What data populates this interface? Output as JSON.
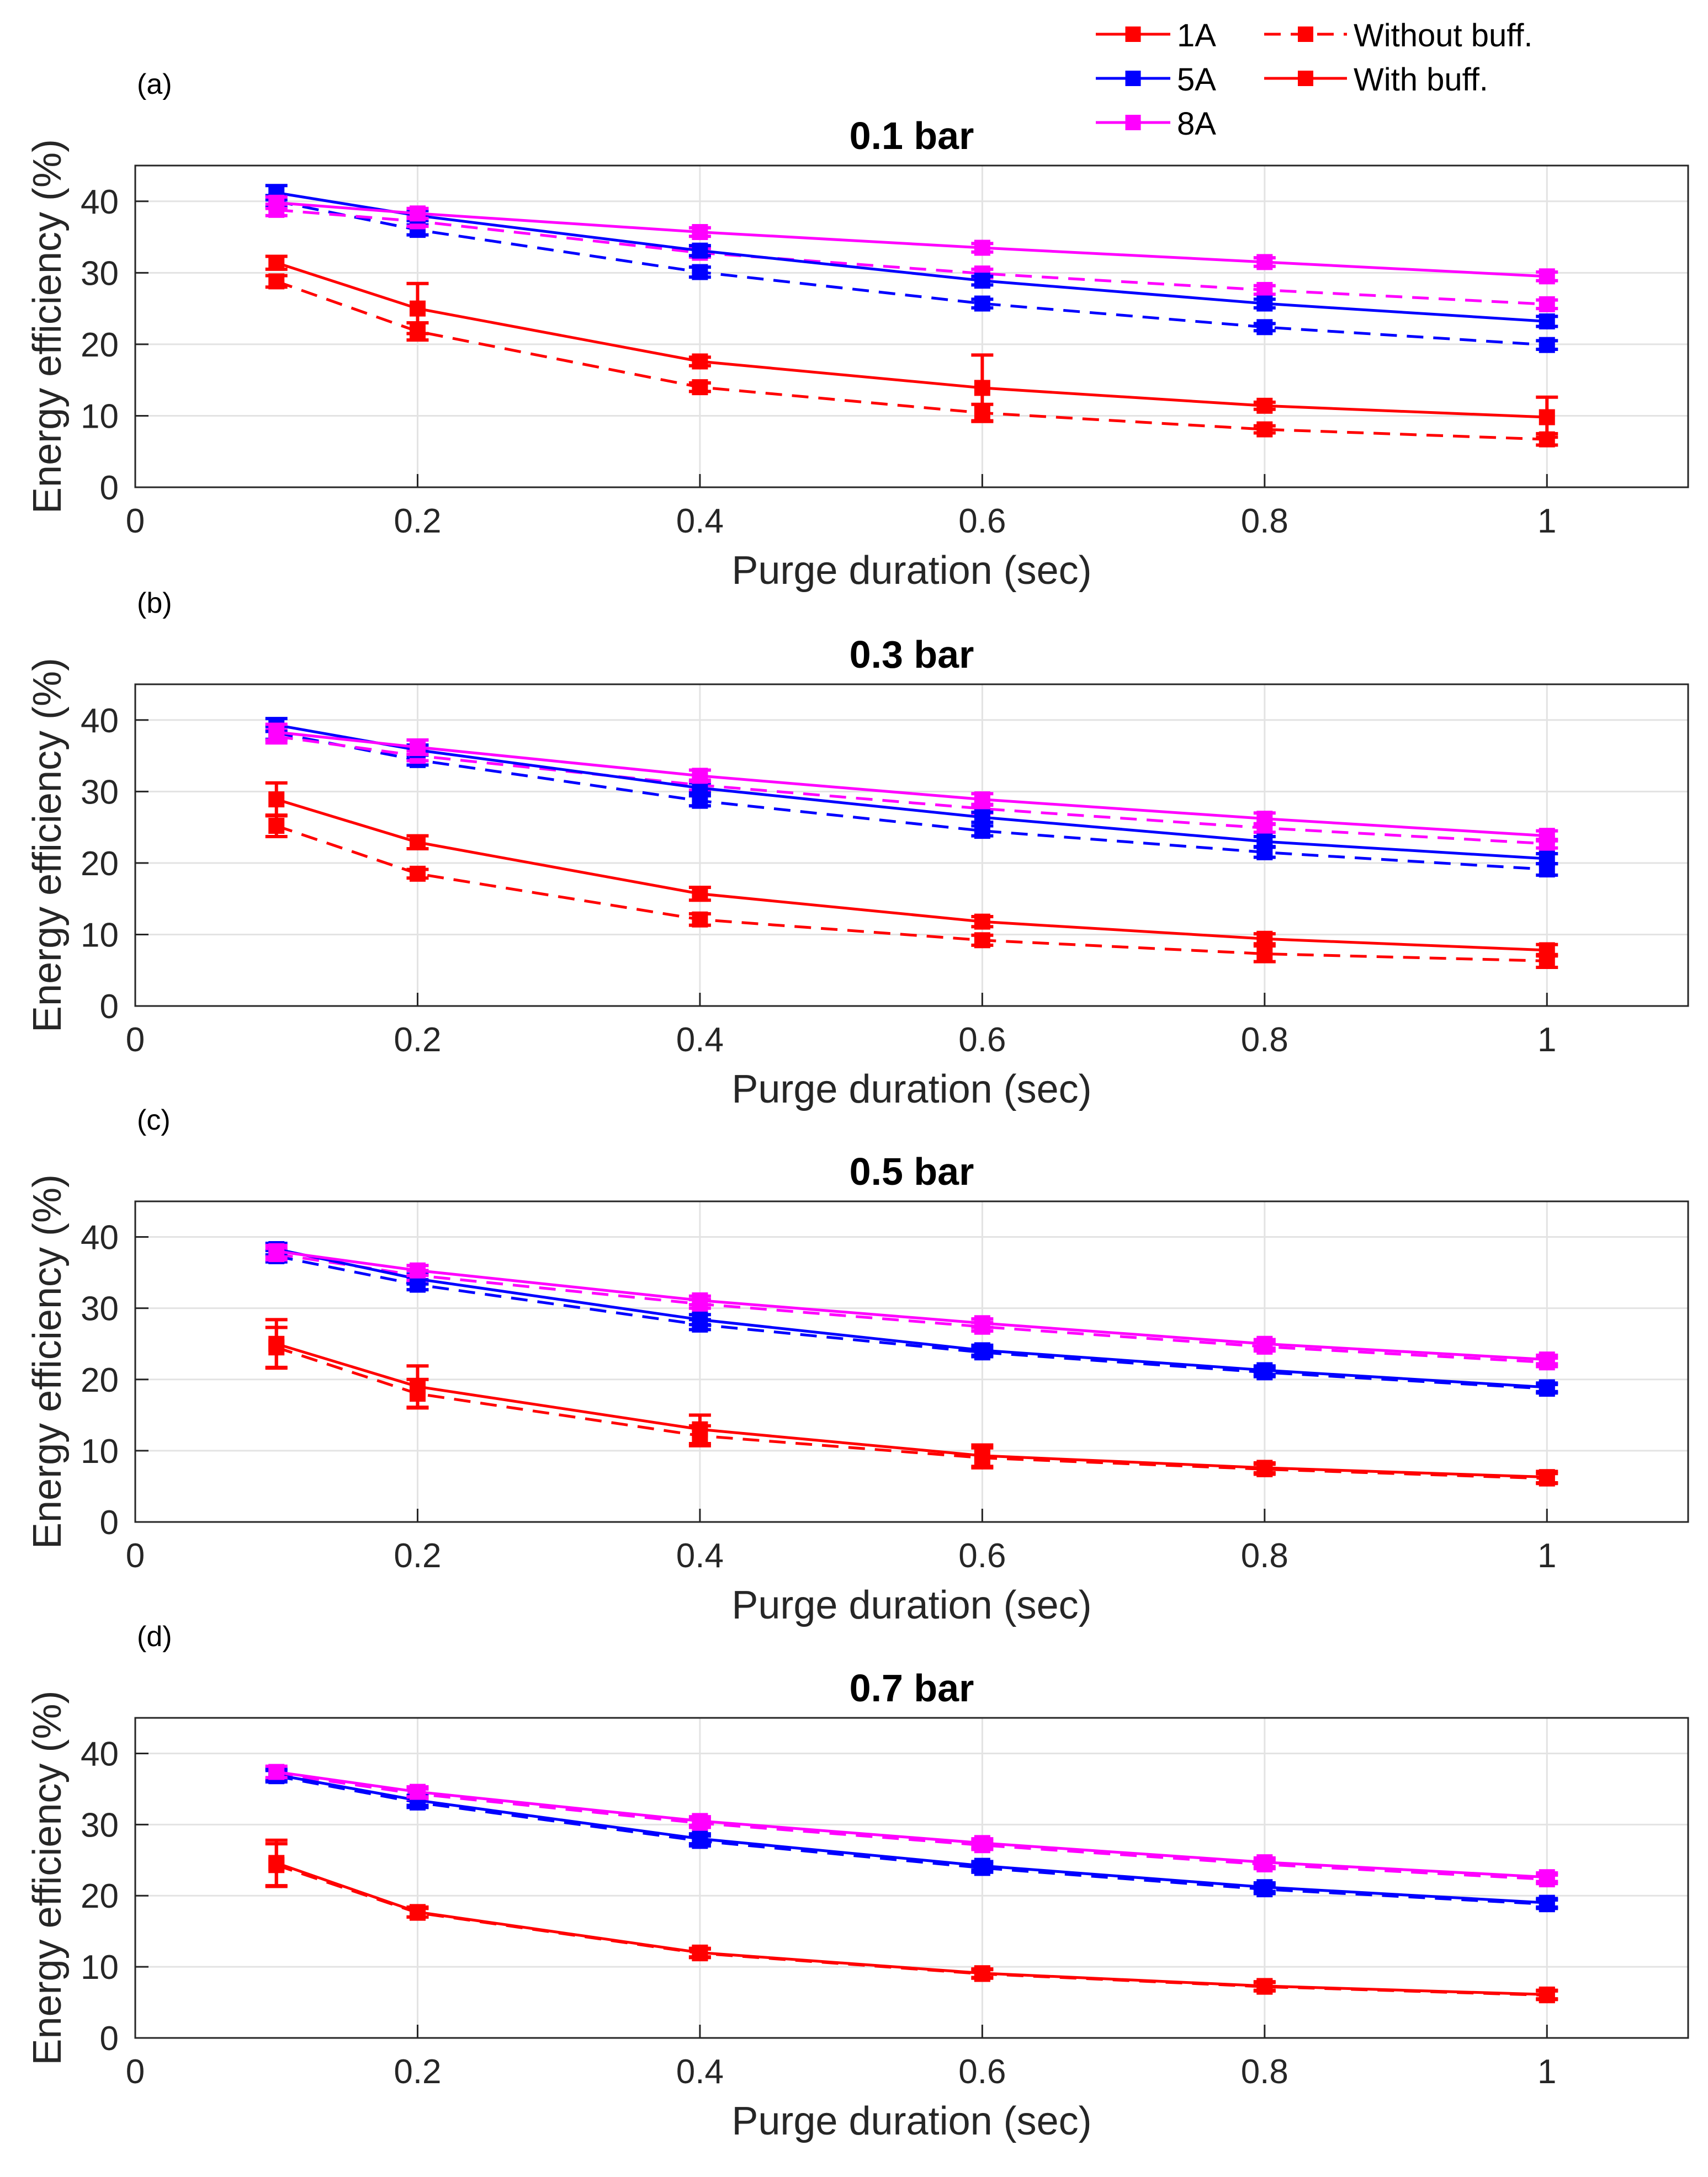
{
  "legend": {
    "entries": [
      {
        "label": "1A",
        "color": "#ff0000",
        "dash": false
      },
      {
        "label": "5A",
        "color": "#0000ff",
        "dash": false
      },
      {
        "label": "8A",
        "color": "#ff00ff",
        "dash": false
      },
      {
        "label": "Without buff.",
        "color": "#ff0000",
        "dash": true
      },
      {
        "label": "With buff.",
        "color": "#ff0000",
        "dash": false
      }
    ]
  },
  "chart_data": [
    {
      "type": "line",
      "panel": "(a)",
      "title": "0.1 bar",
      "xlabel": "Purge duration (sec)",
      "ylabel": "Energy efficiency (%)",
      "xlim": [
        0,
        1.1
      ],
      "ylim": [
        0,
        45
      ],
      "xticks": [
        0,
        0.2,
        0.4,
        0.6,
        0.8,
        1
      ],
      "xtick_labels": [
        "0",
        "0.2",
        "0.4",
        "0.6",
        "0.8",
        "1"
      ],
      "yticks": [
        0,
        10,
        20,
        30,
        40
      ],
      "ytick_labels": [
        "0",
        "10",
        "20",
        "30",
        "40"
      ],
      "grid": true,
      "x": [
        0.1,
        0.2,
        0.4,
        0.6,
        0.8,
        1.0
      ],
      "series": [
        {
          "name": "1A without buff.",
          "color": "#ff0000",
          "dash": true,
          "values": [
            28.8,
            21.8,
            14.0,
            10.4,
            8.1,
            6.7
          ],
          "errors": [
            0.8,
            1.2,
            0.6,
            1.2,
            0.5,
            0.8
          ]
        },
        {
          "name": "1A with buff.",
          "color": "#ff0000",
          "dash": false,
          "values": [
            31.4,
            25.0,
            17.6,
            13.9,
            11.4,
            9.8
          ],
          "errors": [
            0.9,
            3.5,
            0.6,
            4.6,
            0.5,
            2.8
          ]
        },
        {
          "name": "5A without buff.",
          "color": "#0000ff",
          "dash": true,
          "values": [
            40.0,
            36.0,
            30.1,
            25.7,
            22.4,
            19.9
          ],
          "errors": [
            0.8,
            0.7,
            0.7,
            0.6,
            0.5,
            0.6
          ]
        },
        {
          "name": "5A with buff.",
          "color": "#0000ff",
          "dash": false,
          "values": [
            41.2,
            38.0,
            33.1,
            28.9,
            25.7,
            23.2
          ],
          "errors": [
            1.0,
            0.7,
            0.7,
            0.6,
            0.6,
            0.7
          ]
        },
        {
          "name": "8A without buff.",
          "color": "#ff00ff",
          "dash": true,
          "values": [
            38.8,
            37.2,
            32.8,
            29.9,
            27.6,
            25.6
          ],
          "errors": [
            0.8,
            0.7,
            0.6,
            0.6,
            0.6,
            0.6
          ]
        },
        {
          "name": "8A with buff.",
          "color": "#ff00ff",
          "dash": false,
          "values": [
            39.8,
            38.3,
            35.7,
            33.5,
            31.5,
            29.5
          ],
          "errors": [
            0.8,
            0.7,
            0.6,
            0.6,
            0.6,
            0.6
          ]
        }
      ]
    },
    {
      "type": "line",
      "panel": "(b)",
      "title": "0.3 bar",
      "xlabel": "Purge duration (sec)",
      "ylabel": "Energy efficiency (%)",
      "xlim": [
        0,
        1.1
      ],
      "ylim": [
        0,
        45
      ],
      "xticks": [
        0,
        0.2,
        0.4,
        0.6,
        0.8,
        1
      ],
      "xtick_labels": [
        "0",
        "0.2",
        "0.4",
        "0.6",
        "0.8",
        "1"
      ],
      "yticks": [
        0,
        10,
        20,
        30,
        40
      ],
      "ytick_labels": [
        "0",
        "10",
        "20",
        "30",
        "40"
      ],
      "grid": true,
      "x": [
        0.1,
        0.2,
        0.4,
        0.6,
        0.8,
        1.0
      ],
      "series": [
        {
          "name": "1A without buff.",
          "color": "#ff0000",
          "dash": true,
          "values": [
            25.2,
            18.5,
            12.1,
            9.2,
            7.3,
            6.3
          ],
          "errors": [
            1.5,
            0.6,
            0.8,
            0.7,
            1.1,
            0.9
          ]
        },
        {
          "name": "1A with buff.",
          "color": "#ff0000",
          "dash": false,
          "values": [
            28.9,
            22.9,
            15.7,
            11.8,
            9.4,
            7.8
          ],
          "errors": [
            2.3,
            0.9,
            0.9,
            0.7,
            0.7,
            0.8
          ]
        },
        {
          "name": "5A without buff.",
          "color": "#0000ff",
          "dash": true,
          "values": [
            38.2,
            34.4,
            28.7,
            24.5,
            21.5,
            19.1
          ],
          "errors": [
            0.9,
            0.7,
            0.7,
            0.7,
            0.7,
            0.8
          ]
        },
        {
          "name": "5A with buff.",
          "color": "#0000ff",
          "dash": false,
          "values": [
            39.3,
            35.8,
            30.5,
            26.4,
            23.0,
            20.6
          ],
          "errors": [
            0.9,
            0.7,
            0.7,
            0.7,
            0.7,
            0.7
          ]
        },
        {
          "name": "8A without buff.",
          "color": "#ff00ff",
          "dash": true,
          "values": [
            37.7,
            35.0,
            30.9,
            27.6,
            24.9,
            22.7
          ],
          "errors": [
            0.9,
            0.7,
            0.7,
            0.6,
            0.6,
            0.6
          ]
        },
        {
          "name": "8A with buff.",
          "color": "#ff00ff",
          "dash": false,
          "values": [
            38.3,
            36.2,
            32.2,
            28.9,
            26.2,
            23.8
          ],
          "errors": [
            1.1,
            1.0,
            0.8,
            0.8,
            0.8,
            0.7
          ]
        }
      ]
    },
    {
      "type": "line",
      "panel": "(c)",
      "title": "0.5 bar",
      "xlabel": "Purge duration (sec)",
      "ylabel": "Energy efficiency (%)",
      "xlim": [
        0,
        1.1
      ],
      "ylim": [
        0,
        45
      ],
      "xticks": [
        0,
        0.2,
        0.4,
        0.6,
        0.8,
        1
      ],
      "xtick_labels": [
        "0",
        "0.2",
        "0.4",
        "0.6",
        "0.8",
        "1"
      ],
      "yticks": [
        0,
        10,
        20,
        30,
        40
      ],
      "ytick_labels": [
        "0",
        "10",
        "20",
        "30",
        "40"
      ],
      "grid": true,
      "x": [
        0.1,
        0.2,
        0.4,
        0.6,
        0.8,
        1.0
      ],
      "series": [
        {
          "name": "1A without buff.",
          "color": "#ff0000",
          "dash": true,
          "values": [
            24.5,
            18.0,
            12.1,
            9.0,
            7.4,
            6.1
          ],
          "errors": [
            2.8,
            2.0,
            1.4,
            1.4,
            0.7,
            0.7
          ]
        },
        {
          "name": "1A with buff.",
          "color": "#ff0000",
          "dash": false,
          "values": [
            25.0,
            19.0,
            13.0,
            9.3,
            7.6,
            6.3
          ],
          "errors": [
            3.4,
            2.9,
            2.0,
            1.5,
            0.7,
            0.8
          ]
        },
        {
          "name": "5A without buff.",
          "color": "#0000ff",
          "dash": true,
          "values": [
            37.3,
            33.3,
            27.7,
            23.8,
            21.0,
            18.7
          ],
          "errors": [
            0.8,
            0.7,
            0.7,
            0.6,
            0.6,
            0.6
          ]
        },
        {
          "name": "5A with buff.",
          "color": "#0000ff",
          "dash": false,
          "values": [
            38.3,
            34.1,
            28.4,
            24.1,
            21.3,
            18.9
          ],
          "errors": [
            0.8,
            0.7,
            0.7,
            0.7,
            0.6,
            0.6
          ]
        },
        {
          "name": "8A without buff.",
          "color": "#ff00ff",
          "dash": true,
          "values": [
            37.6,
            34.6,
            30.6,
            27.4,
            24.6,
            22.4
          ],
          "errors": [
            0.8,
            0.7,
            0.6,
            0.6,
            0.6,
            0.6
          ]
        },
        {
          "name": "8A with buff.",
          "color": "#ff00ff",
          "dash": false,
          "values": [
            38.0,
            35.3,
            31.1,
            27.9,
            25.0,
            22.8
          ],
          "errors": [
            0.8,
            0.7,
            0.6,
            0.6,
            0.6,
            0.6
          ]
        }
      ]
    },
    {
      "type": "line",
      "panel": "(d)",
      "title": "0.7 bar",
      "xlabel": "Purge duration (sec)",
      "ylabel": "Energy efficiency (%)",
      "xlim": [
        0,
        1.1
      ],
      "ylim": [
        0,
        45
      ],
      "xticks": [
        0,
        0.2,
        0.4,
        0.6,
        0.8,
        1
      ],
      "xtick_labels": [
        "0",
        "0.2",
        "0.4",
        "0.6",
        "0.8",
        "1"
      ],
      "yticks": [
        0,
        10,
        20,
        30,
        40
      ],
      "ytick_labels": [
        "0",
        "10",
        "20",
        "30",
        "40"
      ],
      "grid": true,
      "x": [
        0.1,
        0.2,
        0.4,
        0.6,
        0.8,
        1.0
      ],
      "series": [
        {
          "name": "1A without buff.",
          "color": "#ff0000",
          "dash": true,
          "values": [
            24.3,
            17.6,
            11.9,
            9.0,
            7.2,
            6.0
          ],
          "errors": [
            3.0,
            0.6,
            0.6,
            0.6,
            0.6,
            0.6
          ]
        },
        {
          "name": "1A with buff.",
          "color": "#ff0000",
          "dash": false,
          "values": [
            24.6,
            17.7,
            12.0,
            9.1,
            7.3,
            6.1
          ],
          "errors": [
            3.2,
            0.7,
            0.6,
            0.6,
            0.6,
            0.6
          ]
        },
        {
          "name": "5A without buff.",
          "color": "#0000ff",
          "dash": true,
          "values": [
            36.8,
            33.1,
            27.7,
            23.9,
            20.9,
            18.8
          ],
          "errors": [
            0.8,
            0.7,
            0.7,
            0.6,
            0.6,
            0.6
          ]
        },
        {
          "name": "5A with buff.",
          "color": "#0000ff",
          "dash": false,
          "values": [
            37.0,
            33.4,
            28.0,
            24.2,
            21.2,
            19.0
          ],
          "errors": [
            0.8,
            0.7,
            0.7,
            0.6,
            0.6,
            0.6
          ]
        },
        {
          "name": "8A without buff.",
          "color": "#ff00ff",
          "dash": true,
          "values": [
            37.2,
            34.3,
            30.2,
            27.1,
            24.4,
            22.3
          ],
          "errors": [
            0.8,
            0.7,
            0.6,
            0.6,
            0.6,
            0.6
          ]
        },
        {
          "name": "8A with buff.",
          "color": "#ff00ff",
          "dash": false,
          "values": [
            37.4,
            34.6,
            30.5,
            27.4,
            24.7,
            22.6
          ],
          "errors": [
            0.8,
            0.7,
            0.6,
            0.6,
            0.6,
            0.6
          ]
        }
      ]
    }
  ]
}
